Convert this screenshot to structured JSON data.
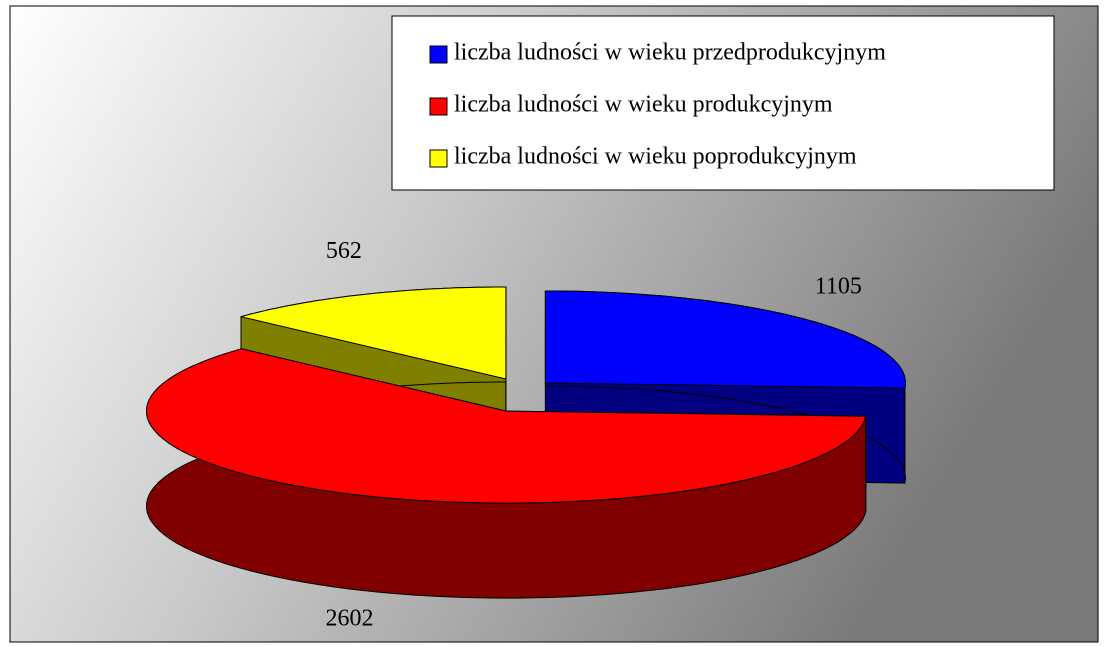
{
  "chart_data": {
    "type": "pie",
    "categories": [
      "liczba ludności w wieku przedprodukcyjnym",
      "liczba ludności w wieku produkcyjnym",
      "liczba ludności w wieku poprodukcyjnym"
    ],
    "values": [
      1105,
      2602,
      562
    ],
    "colors": [
      "#0000ff",
      "#ff0000",
      "#ffff00"
    ],
    "legend": "top-right",
    "three_d": true
  }
}
